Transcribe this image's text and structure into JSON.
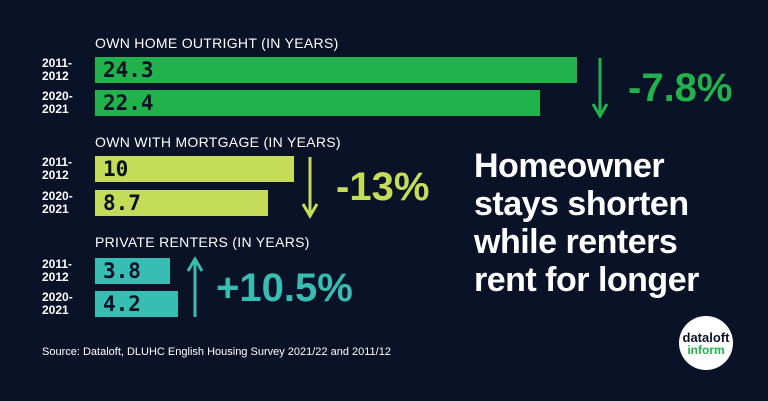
{
  "chart_data": [
    {
      "type": "bar",
      "title": "OWN HOME OUTRIGHT (IN YEARS)",
      "categories": [
        "2011-\n2012",
        "2020-\n2021"
      ],
      "values": [
        24.3,
        22.4
      ],
      "color": "#21b24b",
      "annotation": "-7.8%"
    },
    {
      "type": "bar",
      "title": "OWN WITH MORTGAGE (IN YEARS)",
      "categories": [
        "2011-\n2012",
        "2020-\n2021"
      ],
      "values": [
        10,
        8.7
      ],
      "color": "#c5dc5a",
      "annotation": "-13%"
    },
    {
      "type": "bar",
      "title": "PRIVATE RENTERS (IN YEARS)",
      "categories": [
        "2011-\n2012",
        "2020-\n2021"
      ],
      "values": [
        3.8,
        4.2
      ],
      "color": "#37bdb2",
      "annotation": "+10.5%"
    }
  ],
  "headline": "Homeowner\nstays shorten\nwhile renters\nrent for longer",
  "source": "Source: Dataloft, DLUHC English Housing Survey 2021/22 and 2011/12",
  "logo": {
    "name": "dataloft",
    "sub": "inform"
  }
}
